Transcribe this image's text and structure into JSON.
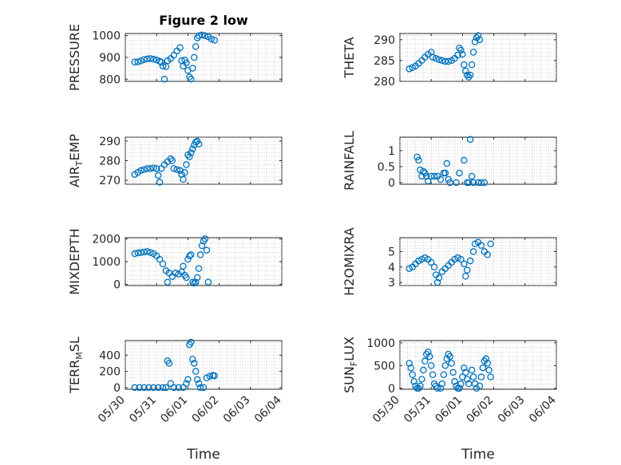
{
  "figure_title": "Figure 2 low",
  "chart_data": [
    {
      "type": "scatter",
      "id": "pressure",
      "title": "Figure 2 low",
      "ylabel_segments": [
        {
          "t": "PRESSURE"
        }
      ],
      "xlabel": "",
      "xlim": [
        "05/30",
        "06/04"
      ],
      "ylim": [
        790,
        1010
      ],
      "yticks": [
        800,
        900,
        1000
      ],
      "xtick_labels_visible": false,
      "points": [
        [
          0.3,
          879
        ],
        [
          0.4,
          880
        ],
        [
          0.5,
          884
        ],
        [
          0.6,
          890
        ],
        [
          0.7,
          893
        ],
        [
          0.8,
          895
        ],
        [
          0.9,
          892
        ],
        [
          1.0,
          888
        ],
        [
          1.1,
          882
        ],
        [
          1.15,
          878
        ],
        [
          1.2,
          860
        ],
        [
          1.25,
          800
        ],
        [
          1.3,
          858
        ],
        [
          1.35,
          885
        ],
        [
          1.45,
          895
        ],
        [
          1.55,
          910
        ],
        [
          1.65,
          930
        ],
        [
          1.75,
          945
        ],
        [
          1.8,
          885
        ],
        [
          1.85,
          860
        ],
        [
          1.9,
          888
        ],
        [
          1.95,
          875
        ],
        [
          2.0,
          840
        ],
        [
          2.05,
          810
        ],
        [
          2.1,
          800
        ],
        [
          2.15,
          850
        ],
        [
          2.2,
          900
        ],
        [
          2.25,
          950
        ],
        [
          2.3,
          990
        ],
        [
          2.35,
          1000
        ],
        [
          2.45,
          1003
        ],
        [
          2.55,
          1000
        ],
        [
          2.65,
          995
        ],
        [
          2.75,
          985
        ],
        [
          2.85,
          979
        ]
      ]
    },
    {
      "type": "scatter",
      "id": "theta",
      "ylabel_segments": [
        {
          "t": "THETA"
        }
      ],
      "xlabel": "",
      "xlim": [
        "05/30",
        "06/04"
      ],
      "ylim": [
        280,
        291.5
      ],
      "yticks": [
        280,
        285,
        290
      ],
      "xtick_labels_visible": false,
      "points": [
        [
          0.3,
          283
        ],
        [
          0.4,
          283.3
        ],
        [
          0.5,
          283.7
        ],
        [
          0.6,
          284.3
        ],
        [
          0.7,
          285
        ],
        [
          0.8,
          285.8
        ],
        [
          0.9,
          286.5
        ],
        [
          1.0,
          287
        ],
        [
          1.05,
          285.8
        ],
        [
          1.15,
          285.5
        ],
        [
          1.25,
          285.2
        ],
        [
          1.35,
          285
        ],
        [
          1.45,
          284.8
        ],
        [
          1.55,
          284.8
        ],
        [
          1.65,
          285
        ],
        [
          1.75,
          285.5
        ],
        [
          1.85,
          286.3
        ],
        [
          1.9,
          288
        ],
        [
          1.95,
          287.5
        ],
        [
          2.0,
          286.5
        ],
        [
          2.05,
          284
        ],
        [
          2.1,
          282.5
        ],
        [
          2.15,
          281.5
        ],
        [
          2.2,
          281
        ],
        [
          2.25,
          281.5
        ],
        [
          2.3,
          284
        ],
        [
          2.35,
          287
        ],
        [
          2.4,
          289.5
        ],
        [
          2.45,
          290.5
        ],
        [
          2.5,
          291
        ],
        [
          2.55,
          290
        ]
      ]
    },
    {
      "type": "scatter",
      "id": "air-temp",
      "ylabel_segments": [
        {
          "t": "AIR"
        },
        {
          "t": "T",
          "sub": true
        },
        {
          "t": "EMP"
        }
      ],
      "xlabel": "",
      "xlim": [
        "05/30",
        "06/04"
      ],
      "ylim": [
        268,
        292
      ],
      "yticks": [
        270,
        280,
        290
      ],
      "xtick_labels_visible": false,
      "points": [
        [
          0.3,
          273
        ],
        [
          0.4,
          274
        ],
        [
          0.5,
          275
        ],
        [
          0.6,
          275.5
        ],
        [
          0.7,
          276
        ],
        [
          0.8,
          276
        ],
        [
          0.9,
          276.3
        ],
        [
          1.0,
          276
        ],
        [
          1.05,
          272.5
        ],
        [
          1.1,
          269
        ],
        [
          1.15,
          276
        ],
        [
          1.25,
          278
        ],
        [
          1.35,
          279.5
        ],
        [
          1.45,
          281
        ],
        [
          1.5,
          280
        ],
        [
          1.55,
          276
        ],
        [
          1.65,
          275.5
        ],
        [
          1.75,
          275
        ],
        [
          1.8,
          273
        ],
        [
          1.85,
          270.5
        ],
        [
          1.9,
          274
        ],
        [
          1.95,
          278
        ],
        [
          2.0,
          283
        ],
        [
          2.05,
          282
        ],
        [
          2.1,
          284
        ],
        [
          2.15,
          286
        ],
        [
          2.2,
          288
        ],
        [
          2.25,
          289.5
        ],
        [
          2.3,
          290
        ],
        [
          2.35,
          288.5
        ]
      ]
    },
    {
      "type": "scatter",
      "id": "rainfall",
      "ylabel_segments": [
        {
          "t": "RAINFALL"
        }
      ],
      "xlabel": "",
      "xlim": [
        "05/30",
        "06/04"
      ],
      "ylim": [
        -0.05,
        1.42
      ],
      "yticks": [
        0,
        0.5,
        1
      ],
      "yticklabels": [
        "0",
        "0.5",
        "1"
      ],
      "xtick_labels_visible": false,
      "points": [
        [
          0.55,
          0.8
        ],
        [
          0.6,
          0.7
        ],
        [
          0.65,
          0.4
        ],
        [
          0.7,
          0.2
        ],
        [
          0.75,
          0.35
        ],
        [
          0.8,
          0.3
        ],
        [
          0.85,
          0.2
        ],
        [
          0.9,
          0.05
        ],
        [
          1.0,
          0.2
        ],
        [
          1.1,
          0.2
        ],
        [
          1.2,
          0.2
        ],
        [
          1.3,
          0.1
        ],
        [
          1.4,
          0.3
        ],
        [
          1.45,
          0.3
        ],
        [
          1.5,
          0.6
        ],
        [
          1.55,
          0.1
        ],
        [
          1.6,
          0.0
        ],
        [
          1.8,
          0.0
        ],
        [
          1.9,
          0.3
        ],
        [
          2.05,
          0.7
        ],
        [
          2.15,
          0.0
        ],
        [
          2.2,
          0.0
        ],
        [
          2.25,
          1.35
        ],
        [
          2.3,
          0.2
        ],
        [
          2.35,
          0.0
        ],
        [
          2.5,
          0.0
        ],
        [
          2.6,
          0.0
        ],
        [
          2.7,
          0.0
        ]
      ]
    },
    {
      "type": "scatter",
      "id": "mixdepth",
      "ylabel_segments": [
        {
          "t": "MIXDEPTH"
        }
      ],
      "xlabel": "",
      "xlim": [
        "05/30",
        "06/04"
      ],
      "ylim": [
        -50,
        2050
      ],
      "yticks": [
        0,
        1000,
        2000
      ],
      "xtick_labels_visible": false,
      "points": [
        [
          0.3,
          1350
        ],
        [
          0.4,
          1380
        ],
        [
          0.5,
          1400
        ],
        [
          0.6,
          1420
        ],
        [
          0.7,
          1440
        ],
        [
          0.8,
          1400
        ],
        [
          0.9,
          1350
        ],
        [
          1.0,
          1250
        ],
        [
          1.1,
          1100
        ],
        [
          1.2,
          900
        ],
        [
          1.3,
          600
        ],
        [
          1.35,
          100
        ],
        [
          1.4,
          500
        ],
        [
          1.5,
          350
        ],
        [
          1.6,
          500
        ],
        [
          1.7,
          450
        ],
        [
          1.8,
          550
        ],
        [
          1.85,
          800
        ],
        [
          1.9,
          400
        ],
        [
          1.95,
          300
        ],
        [
          2.0,
          1100
        ],
        [
          2.05,
          1250
        ],
        [
          2.1,
          1300
        ],
        [
          2.15,
          100
        ],
        [
          2.2,
          50
        ],
        [
          2.25,
          100
        ],
        [
          2.3,
          300
        ],
        [
          2.35,
          700
        ],
        [
          2.4,
          1300
        ],
        [
          2.45,
          1700
        ],
        [
          2.5,
          1900
        ],
        [
          2.55,
          2000
        ],
        [
          2.6,
          1500
        ],
        [
          2.65,
          100
        ]
      ]
    },
    {
      "type": "scatter",
      "id": "h2omixra",
      "ylabel_segments": [
        {
          "t": "H2OMIXRA"
        }
      ],
      "xlabel": "",
      "xlim": [
        "05/30",
        "06/04"
      ],
      "ylim": [
        2.8,
        5.9
      ],
      "yticks": [
        3,
        4,
        5
      ],
      "xtick_labels_visible": false,
      "points": [
        [
          0.3,
          3.9
        ],
        [
          0.4,
          4.0
        ],
        [
          0.5,
          4.2
        ],
        [
          0.6,
          4.4
        ],
        [
          0.7,
          4.5
        ],
        [
          0.8,
          4.6
        ],
        [
          0.9,
          4.5
        ],
        [
          1.0,
          4.3
        ],
        [
          1.1,
          4.0
        ],
        [
          1.15,
          3.5
        ],
        [
          1.2,
          3.0
        ],
        [
          1.25,
          3.3
        ],
        [
          1.35,
          3.7
        ],
        [
          1.45,
          3.9
        ],
        [
          1.55,
          4.1
        ],
        [
          1.65,
          4.3
        ],
        [
          1.75,
          4.5
        ],
        [
          1.85,
          4.6
        ],
        [
          1.95,
          4.5
        ],
        [
          2.05,
          4.2
        ],
        [
          2.1,
          3.4
        ],
        [
          2.15,
          3.8
        ],
        [
          2.25,
          4.4
        ],
        [
          2.35,
          5.0
        ],
        [
          2.4,
          5.5
        ],
        [
          2.5,
          5.6
        ],
        [
          2.6,
          5.4
        ],
        [
          2.7,
          5.0
        ],
        [
          2.8,
          4.8
        ],
        [
          2.9,
          5.5
        ]
      ]
    },
    {
      "type": "scatter",
      "id": "terr-msl",
      "ylabel_segments": [
        {
          "t": "TERR"
        },
        {
          "t": "M",
          "sub": true
        },
        {
          "t": "SL"
        }
      ],
      "xlabel": "Time",
      "xlim": [
        "05/30",
        "06/04"
      ],
      "ylim": [
        -20,
        580
      ],
      "yticks": [
        0,
        200,
        400
      ],
      "xtick_labels_visible": true,
      "xticks": [
        "05/30",
        "05/31",
        "06/01",
        "06/02",
        "06/03",
        "06/04"
      ],
      "points": [
        [
          0.3,
          0
        ],
        [
          0.45,
          0
        ],
        [
          0.6,
          0
        ],
        [
          0.75,
          0
        ],
        [
          0.9,
          0
        ],
        [
          1.05,
          0
        ],
        [
          1.2,
          0
        ],
        [
          1.3,
          0
        ],
        [
          1.35,
          330
        ],
        [
          1.4,
          300
        ],
        [
          1.45,
          50
        ],
        [
          1.55,
          0
        ],
        [
          1.7,
          0
        ],
        [
          1.85,
          0
        ],
        [
          1.95,
          50
        ],
        [
          2.0,
          100
        ],
        [
          2.05,
          530
        ],
        [
          2.1,
          560
        ],
        [
          2.15,
          350
        ],
        [
          2.2,
          300
        ],
        [
          2.25,
          200
        ],
        [
          2.3,
          100
        ],
        [
          2.35,
          50
        ],
        [
          2.4,
          0
        ],
        [
          2.5,
          0
        ],
        [
          2.6,
          120
        ],
        [
          2.7,
          140
        ],
        [
          2.8,
          150
        ],
        [
          2.85,
          145
        ]
      ]
    },
    {
      "type": "scatter",
      "id": "sun-flux",
      "ylabel_segments": [
        {
          "t": "SUN"
        },
        {
          "t": "F",
          "sub": true
        },
        {
          "t": "LUX"
        }
      ],
      "xlabel": "Time",
      "xlim": [
        "05/30",
        "06/04"
      ],
      "ylim": [
        -20,
        1050
      ],
      "yticks": [
        0,
        500,
        1000
      ],
      "xtick_labels_visible": true,
      "xticks": [
        "05/30",
        "05/31",
        "06/01",
        "06/02",
        "06/03",
        "06/04"
      ],
      "points": [
        [
          0.3,
          550
        ],
        [
          0.35,
          450
        ],
        [
          0.4,
          300
        ],
        [
          0.45,
          150
        ],
        [
          0.5,
          50
        ],
        [
          0.55,
          0
        ],
        [
          0.6,
          0
        ],
        [
          0.65,
          50
        ],
        [
          0.7,
          200
        ],
        [
          0.75,
          400
        ],
        [
          0.8,
          600
        ],
        [
          0.85,
          750
        ],
        [
          0.9,
          800
        ],
        [
          0.95,
          700
        ],
        [
          1.0,
          500
        ],
        [
          1.05,
          300
        ],
        [
          1.1,
          100
        ],
        [
          1.15,
          50
        ],
        [
          1.2,
          0
        ],
        [
          1.3,
          0
        ],
        [
          1.35,
          100
        ],
        [
          1.4,
          300
        ],
        [
          1.45,
          500
        ],
        [
          1.5,
          650
        ],
        [
          1.55,
          750
        ],
        [
          1.6,
          700
        ],
        [
          1.65,
          550
        ],
        [
          1.7,
          350
        ],
        [
          1.75,
          150
        ],
        [
          1.8,
          50
        ],
        [
          1.85,
          0
        ],
        [
          1.9,
          0
        ],
        [
          1.95,
          100
        ],
        [
          2.0,
          250
        ],
        [
          2.05,
          450
        ],
        [
          2.1,
          350
        ],
        [
          2.15,
          200
        ],
        [
          2.2,
          100
        ],
        [
          2.3,
          400
        ],
        [
          2.35,
          250
        ],
        [
          2.4,
          100
        ],
        [
          2.45,
          0
        ],
        [
          2.55,
          50
        ],
        [
          2.6,
          250
        ],
        [
          2.65,
          450
        ],
        [
          2.7,
          600
        ],
        [
          2.75,
          650
        ],
        [
          2.8,
          550
        ],
        [
          2.85,
          400
        ],
        [
          2.9,
          250
        ]
      ]
    }
  ]
}
